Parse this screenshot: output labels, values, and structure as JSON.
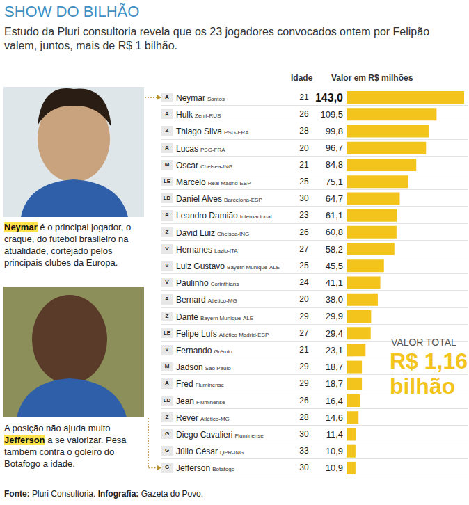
{
  "header": {
    "title": "SHOW DO BILHÃO",
    "subtitle": "Estudo da Pluri consultoria revela que os 23 jogadores convocados ontem por Felipão valem, juntos, mais de R$ 1 bilhão."
  },
  "captions": [
    {
      "parts": [
        {
          "text": "Neymar",
          "highlight": true
        },
        {
          "text": " é o principal jogador, o craque,  do futebol brasileiro na atualidade, cortejado pelos principais clubes da Europa."
        }
      ]
    },
    {
      "parts": [
        {
          "text": "A posição não ajuda muito "
        },
        {
          "text": "Jefferson",
          "highlight": true
        },
        {
          "text": " a se valorizar. Pesa também contra o goleiro do Botafogo a idade."
        }
      ]
    }
  ],
  "chart_data": {
    "type": "bar",
    "orientation": "horizontal",
    "age_label": "Idade",
    "value_label": "Valor em R$ milhões",
    "categories": [
      "Neymar",
      "Hulk",
      "Thiago Silva",
      "Lucas",
      "Oscar",
      "Marcelo",
      "Daniel Alves",
      "Leandro Damião",
      "David Luiz",
      "Hernanes",
      "Luiz Gustavo",
      "Paulinho",
      "Bernard",
      "Dante",
      "Felipe Luís",
      "Fernando",
      "Jadson",
      "Fred",
      "Jean",
      "Rever",
      "Diego Cavalieri",
      "Júlio César",
      "Jefferson"
    ],
    "positions": [
      "A",
      "A",
      "Z",
      "A",
      "M",
      "LE",
      "LD",
      "A",
      "Z",
      "V",
      "V",
      "V",
      "A",
      "Z",
      "LE",
      "V",
      "M",
      "A",
      "LD",
      "Z",
      "G",
      "G",
      "G"
    ],
    "clubs": [
      "Santos",
      "Zenit-RUS",
      "PSG-FRA",
      "PSG-FRA",
      "Chelsea-ING",
      "Real Madrid-ESP",
      "Barcelona-ESP",
      "Internacional",
      "Chelsea-ING",
      "Lazio-ITA",
      "Bayern Munique-ALE",
      "Corinthians",
      "Atlético-MG",
      "Bayern Munique-ALE",
      "Atlético Madrid-ESP",
      "Grêmio",
      "São Paulo",
      "Fluminense",
      "Fluminense",
      "Atlético-MG",
      "Fluminense",
      "QPR-ING",
      "Botafogo"
    ],
    "ages": [
      21,
      26,
      28,
      20,
      21,
      25,
      30,
      23,
      26,
      27,
      25,
      24,
      20,
      29,
      27,
      21,
      29,
      29,
      26,
      28,
      30,
      33,
      30
    ],
    "values": [
      143.0,
      109.5,
      99.8,
      96.7,
      84.8,
      75.1,
      64.7,
      61.1,
      60.8,
      58.2,
      45.5,
      41.1,
      38.0,
      29.9,
      29.4,
      23.1,
      18.7,
      18.7,
      16.4,
      14.6,
      11.4,
      10.9,
      10.9
    ],
    "value_labels": [
      "143,0",
      "109,5",
      "99,8",
      "96,7",
      "84,8",
      "75,1",
      "64,7",
      "61,1",
      "60,8",
      "58,2",
      "45,5",
      "41,1",
      "38,0",
      "29,9",
      "29,4",
      "23,1",
      "18,7",
      "18,7",
      "16,4",
      "14,6",
      "11,4",
      "10,9",
      "10,9"
    ],
    "color": "#f2c41c",
    "xlim": [
      0,
      143
    ],
    "data_labels": true,
    "tick_labels": false,
    "grid": false
  },
  "total": {
    "label": "VALOR TOTAL",
    "amount": "R$ 1,16",
    "unit": "bilhão"
  },
  "footer": {
    "parts": [
      {
        "text": "Fonte:",
        "bold": true
      },
      {
        "text": " Pluri Consultoria. "
      },
      {
        "text": "Infografia:",
        "bold": true
      },
      {
        "text": " Gazeta do Povo."
      }
    ]
  }
}
